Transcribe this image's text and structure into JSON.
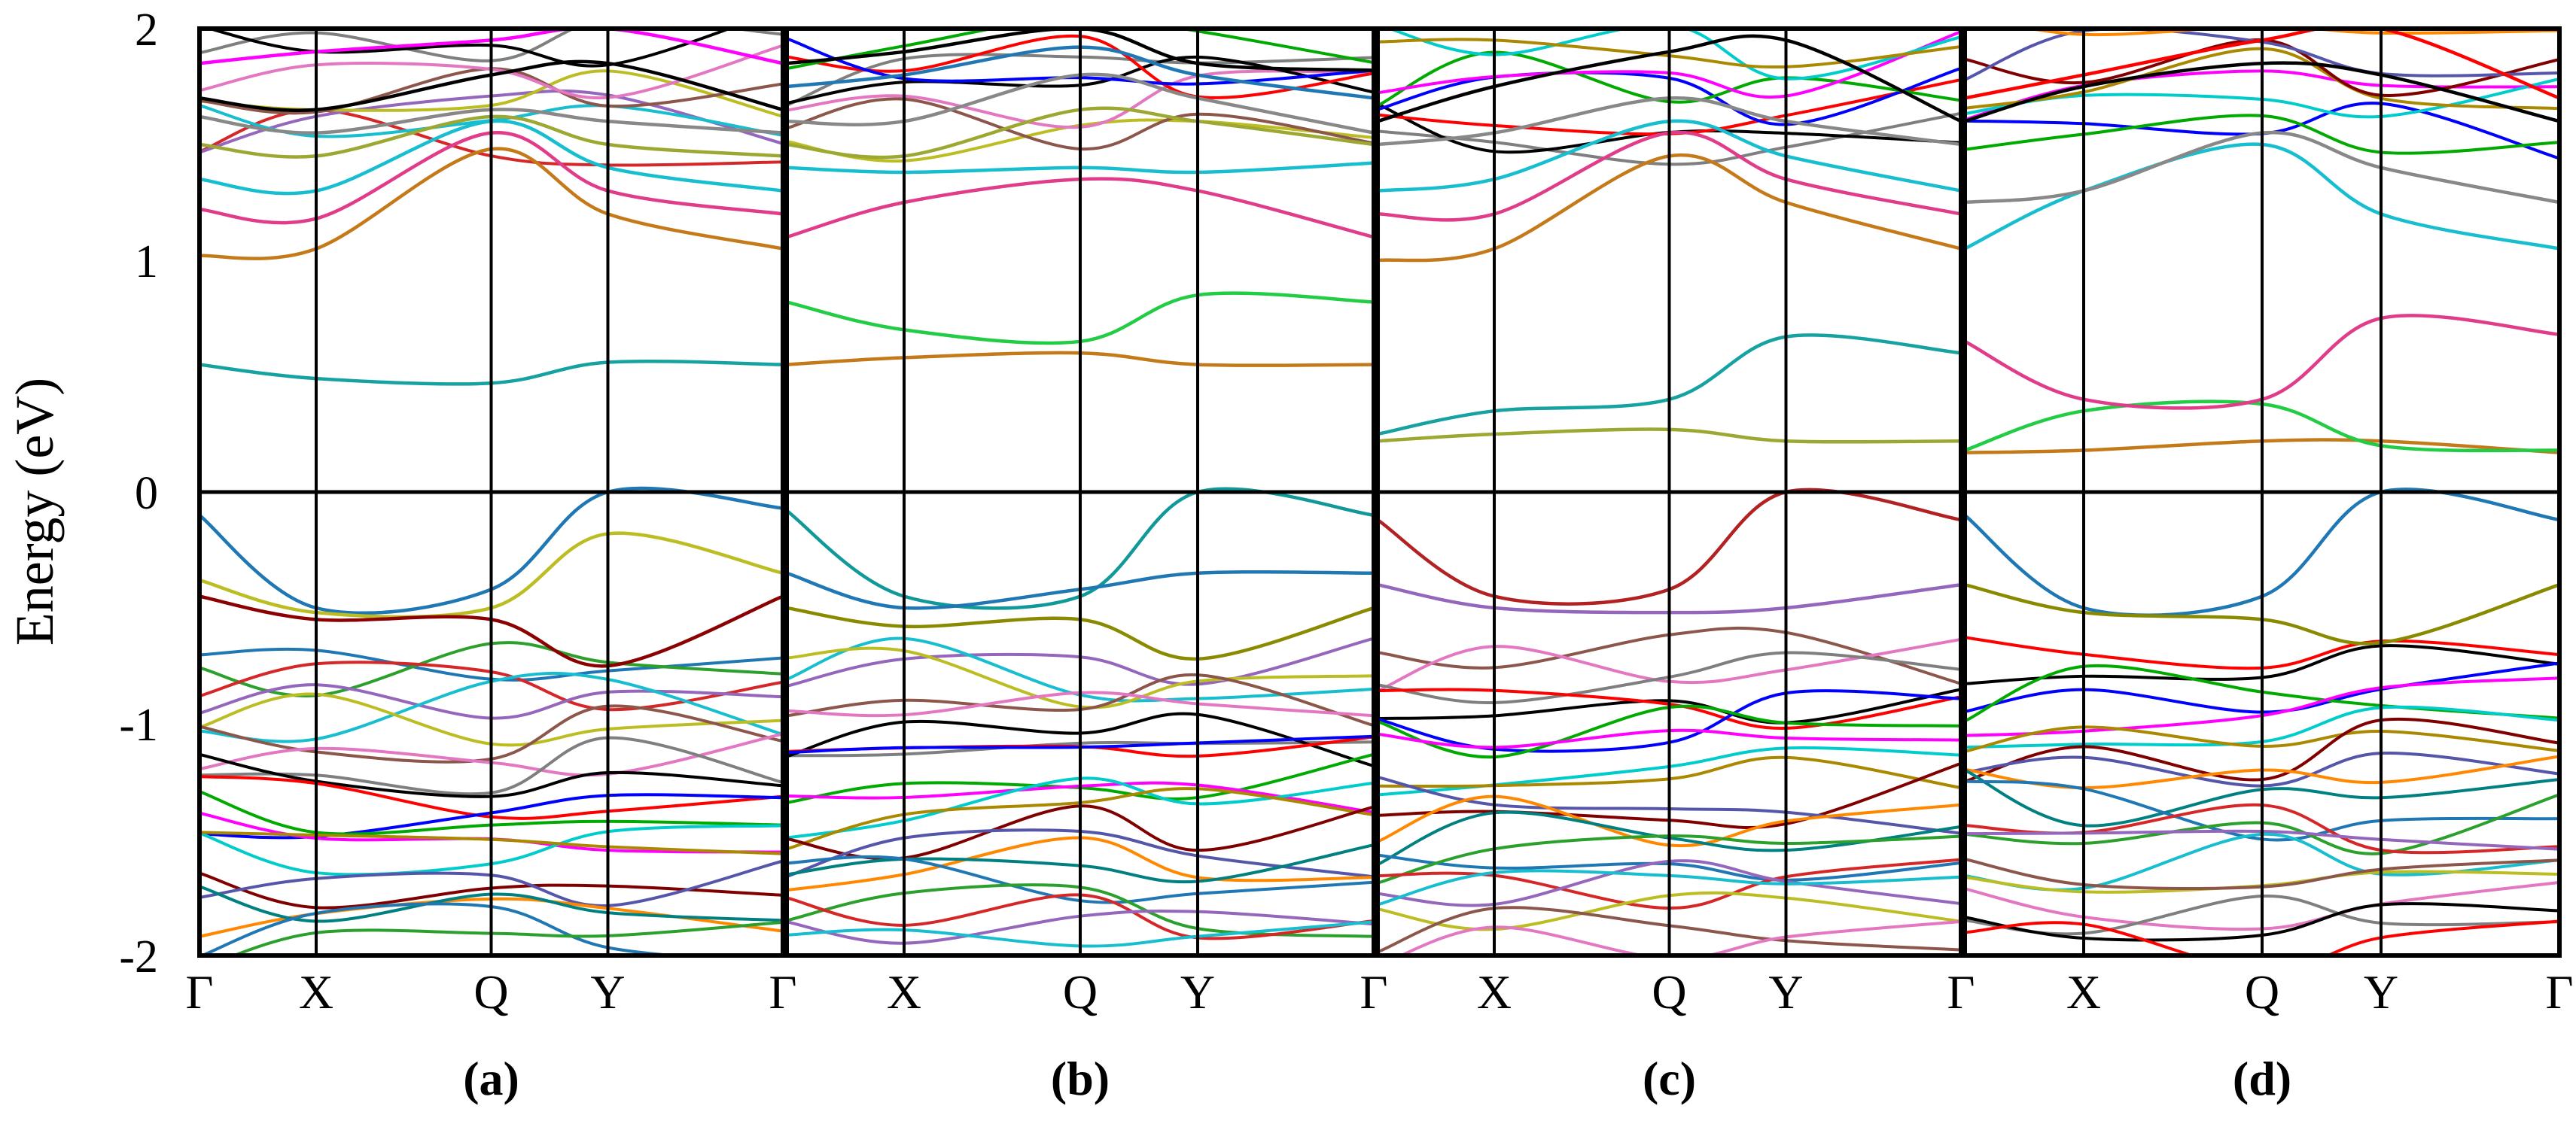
{
  "figure": {
    "ylabel": "Energy (eV)",
    "yticks": [
      -2,
      -1,
      0,
      1,
      2
    ],
    "ylim": [
      -2,
      2
    ],
    "kpoints": [
      "Γ",
      "X",
      "Q",
      "Y",
      "Γ"
    ],
    "kpos": [
      0,
      0.2,
      0.5,
      0.7,
      1.0
    ]
  },
  "palette": [
    "#1f77b4",
    "#2ca02c",
    "#d62728",
    "#9467bd",
    "#17becf",
    "#bcbd22",
    "#8c564b",
    "#e377c2",
    "#7f7f7f",
    "#000000",
    "#ff0000",
    "#0000ff",
    "#00aa00",
    "#ff00ff",
    "#00cccc",
    "#aa8800",
    "#800000",
    "#5555aa",
    "#ff8800",
    "#008080"
  ],
  "chart_data": [
    {
      "panel": "(a)",
      "type": "line",
      "xlabel": "",
      "ylabel": "Energy (eV)",
      "ylim": [
        -2,
        2
      ],
      "x_ticks": [
        "Γ",
        "X",
        "Q",
        "Y",
        "Γ"
      ],
      "series": [
        {
          "values": [
            -0.1,
            -0.5,
            -0.42,
            0.0,
            -0.07
          ],
          "color": "#1f77b4"
        },
        {
          "values": [
            -0.38,
            -0.52,
            -0.5,
            -0.18,
            -0.35
          ],
          "color": "#bcbd22"
        },
        {
          "values": [
            -0.45,
            -0.55,
            -0.55,
            -0.75,
            -0.45
          ],
          "color": "#8b0000"
        },
        {
          "values": [
            0.55,
            0.49,
            0.47,
            0.56,
            0.55
          ],
          "color": "#17a2a2"
        },
        {
          "values": [
            1.02,
            1.05,
            1.48,
            1.2,
            1.05
          ],
          "color": "#c57a1a"
        },
        {
          "values": [
            1.22,
            1.18,
            1.55,
            1.3,
            1.2
          ],
          "color": "#e03c8a"
        },
        {
          "values": [
            1.35,
            1.3,
            1.6,
            1.4,
            1.3
          ],
          "color": "#17becf"
        },
        {
          "values": [
            1.5,
            1.45,
            1.62,
            1.5,
            1.45
          ],
          "color": "#9ca832"
        },
        {
          "values": [
            1.62,
            1.55,
            1.65,
            1.6,
            1.55
          ],
          "color": "#888888"
        },
        {
          "values": [
            1.7,
            1.65,
            1.8,
            1.85,
            1.65
          ],
          "color": "#000000"
        },
        {
          "values": [
            1.85,
            1.9,
            1.95,
            2.0,
            1.85
          ],
          "color": "#ff00ff"
        }
      ]
    },
    {
      "panel": "(b)",
      "type": "line",
      "xlabel": "",
      "ylabel": "Energy (eV)",
      "ylim": [
        -2,
        2
      ],
      "x_ticks": [
        "Γ",
        "X",
        "Q",
        "Y",
        "Γ"
      ],
      "series": [
        {
          "values": [
            -0.08,
            -0.45,
            -0.45,
            0.0,
            -0.1
          ],
          "color": "#119999"
        },
        {
          "values": [
            -0.35,
            -0.5,
            -0.42,
            -0.35,
            -0.35
          ],
          "color": "#1f77b4"
        },
        {
          "values": [
            -0.5,
            -0.58,
            -0.55,
            -0.72,
            -0.5
          ],
          "color": "#8a8a00"
        },
        {
          "values": [
            0.55,
            0.58,
            0.6,
            0.55,
            0.55
          ],
          "color": "#c57a1a"
        },
        {
          "values": [
            0.82,
            0.7,
            0.65,
            0.85,
            0.82
          ],
          "color": "#22cc44"
        },
        {
          "values": [
            1.1,
            1.25,
            1.35,
            1.3,
            1.1
          ],
          "color": "#e03c8a"
        },
        {
          "values": [
            1.4,
            1.38,
            1.4,
            1.38,
            1.42
          ],
          "color": "#17becf"
        },
        {
          "values": [
            1.5,
            1.45,
            1.65,
            1.6,
            1.5
          ],
          "color": "#9ca832"
        },
        {
          "values": [
            1.6,
            1.6,
            1.8,
            1.7,
            1.55
          ],
          "color": "#888888"
        },
        {
          "values": [
            1.75,
            1.8,
            1.92,
            1.8,
            1.7
          ],
          "color": "#1f77b4"
        },
        {
          "values": [
            1.85,
            1.9,
            2.0,
            1.85,
            1.82
          ],
          "color": "#000000"
        }
      ]
    },
    {
      "panel": "(c)",
      "type": "line",
      "xlabel": "",
      "ylabel": "Energy (eV)",
      "ylim": [
        -2,
        2
      ],
      "x_ticks": [
        "Γ",
        "X",
        "Q",
        "Y",
        "Γ"
      ],
      "series": [
        {
          "values": [
            -0.12,
            -0.45,
            -0.42,
            0.0,
            -0.12
          ],
          "color": "#b22222"
        },
        {
          "values": [
            -0.4,
            -0.5,
            -0.52,
            -0.5,
            -0.4
          ],
          "color": "#9467bd"
        },
        {
          "values": [
            0.22,
            0.25,
            0.27,
            0.22,
            0.22
          ],
          "color": "#9ca832"
        },
        {
          "values": [
            0.25,
            0.35,
            0.4,
            0.67,
            0.6
          ],
          "color": "#17a2a2"
        },
        {
          "values": [
            1.0,
            1.05,
            1.45,
            1.25,
            1.05
          ],
          "color": "#c57a1a"
        },
        {
          "values": [
            1.2,
            1.2,
            1.55,
            1.35,
            1.2
          ],
          "color": "#e03c8a"
        },
        {
          "values": [
            1.3,
            1.35,
            1.6,
            1.45,
            1.3
          ],
          "color": "#17becf"
        },
        {
          "values": [
            1.5,
            1.55,
            1.7,
            1.6,
            1.5
          ],
          "color": "#888888"
        },
        {
          "values": [
            1.6,
            1.75,
            1.9,
            1.95,
            1.6
          ],
          "color": "#000000"
        }
      ]
    },
    {
      "panel": "(d)",
      "type": "line",
      "xlabel": "",
      "ylabel": "Energy (eV)",
      "ylim": [
        -2,
        2
      ],
      "x_ticks": [
        "Γ",
        "X",
        "Q",
        "Y",
        "Γ"
      ],
      "series": [
        {
          "values": [
            -0.1,
            -0.5,
            -0.45,
            0.0,
            -0.12
          ],
          "color": "#1f77b4"
        },
        {
          "values": [
            -0.4,
            -0.52,
            -0.55,
            -0.65,
            -0.4
          ],
          "color": "#8a8a00"
        },
        {
          "values": [
            0.17,
            0.18,
            0.22,
            0.22,
            0.17
          ],
          "color": "#c57a1a"
        },
        {
          "values": [
            0.18,
            0.35,
            0.38,
            0.2,
            0.18
          ],
          "color": "#22cc44"
        },
        {
          "values": [
            0.65,
            0.4,
            0.4,
            0.75,
            0.68
          ],
          "color": "#e03c8a"
        },
        {
          "values": [
            1.05,
            1.3,
            1.5,
            1.2,
            1.05
          ],
          "color": "#17becf"
        },
        {
          "values": [
            1.25,
            1.3,
            1.55,
            1.4,
            1.25
          ],
          "color": "#888888"
        },
        {
          "values": [
            1.6,
            1.75,
            1.85,
            1.8,
            1.6
          ],
          "color": "#000000"
        },
        {
          "values": [
            1.7,
            1.8,
            1.95,
            2.0,
            1.7
          ],
          "color": "#ff0000"
        }
      ]
    }
  ],
  "panel_labels": [
    "(a)",
    "(b)",
    "(c)",
    "(d)"
  ]
}
